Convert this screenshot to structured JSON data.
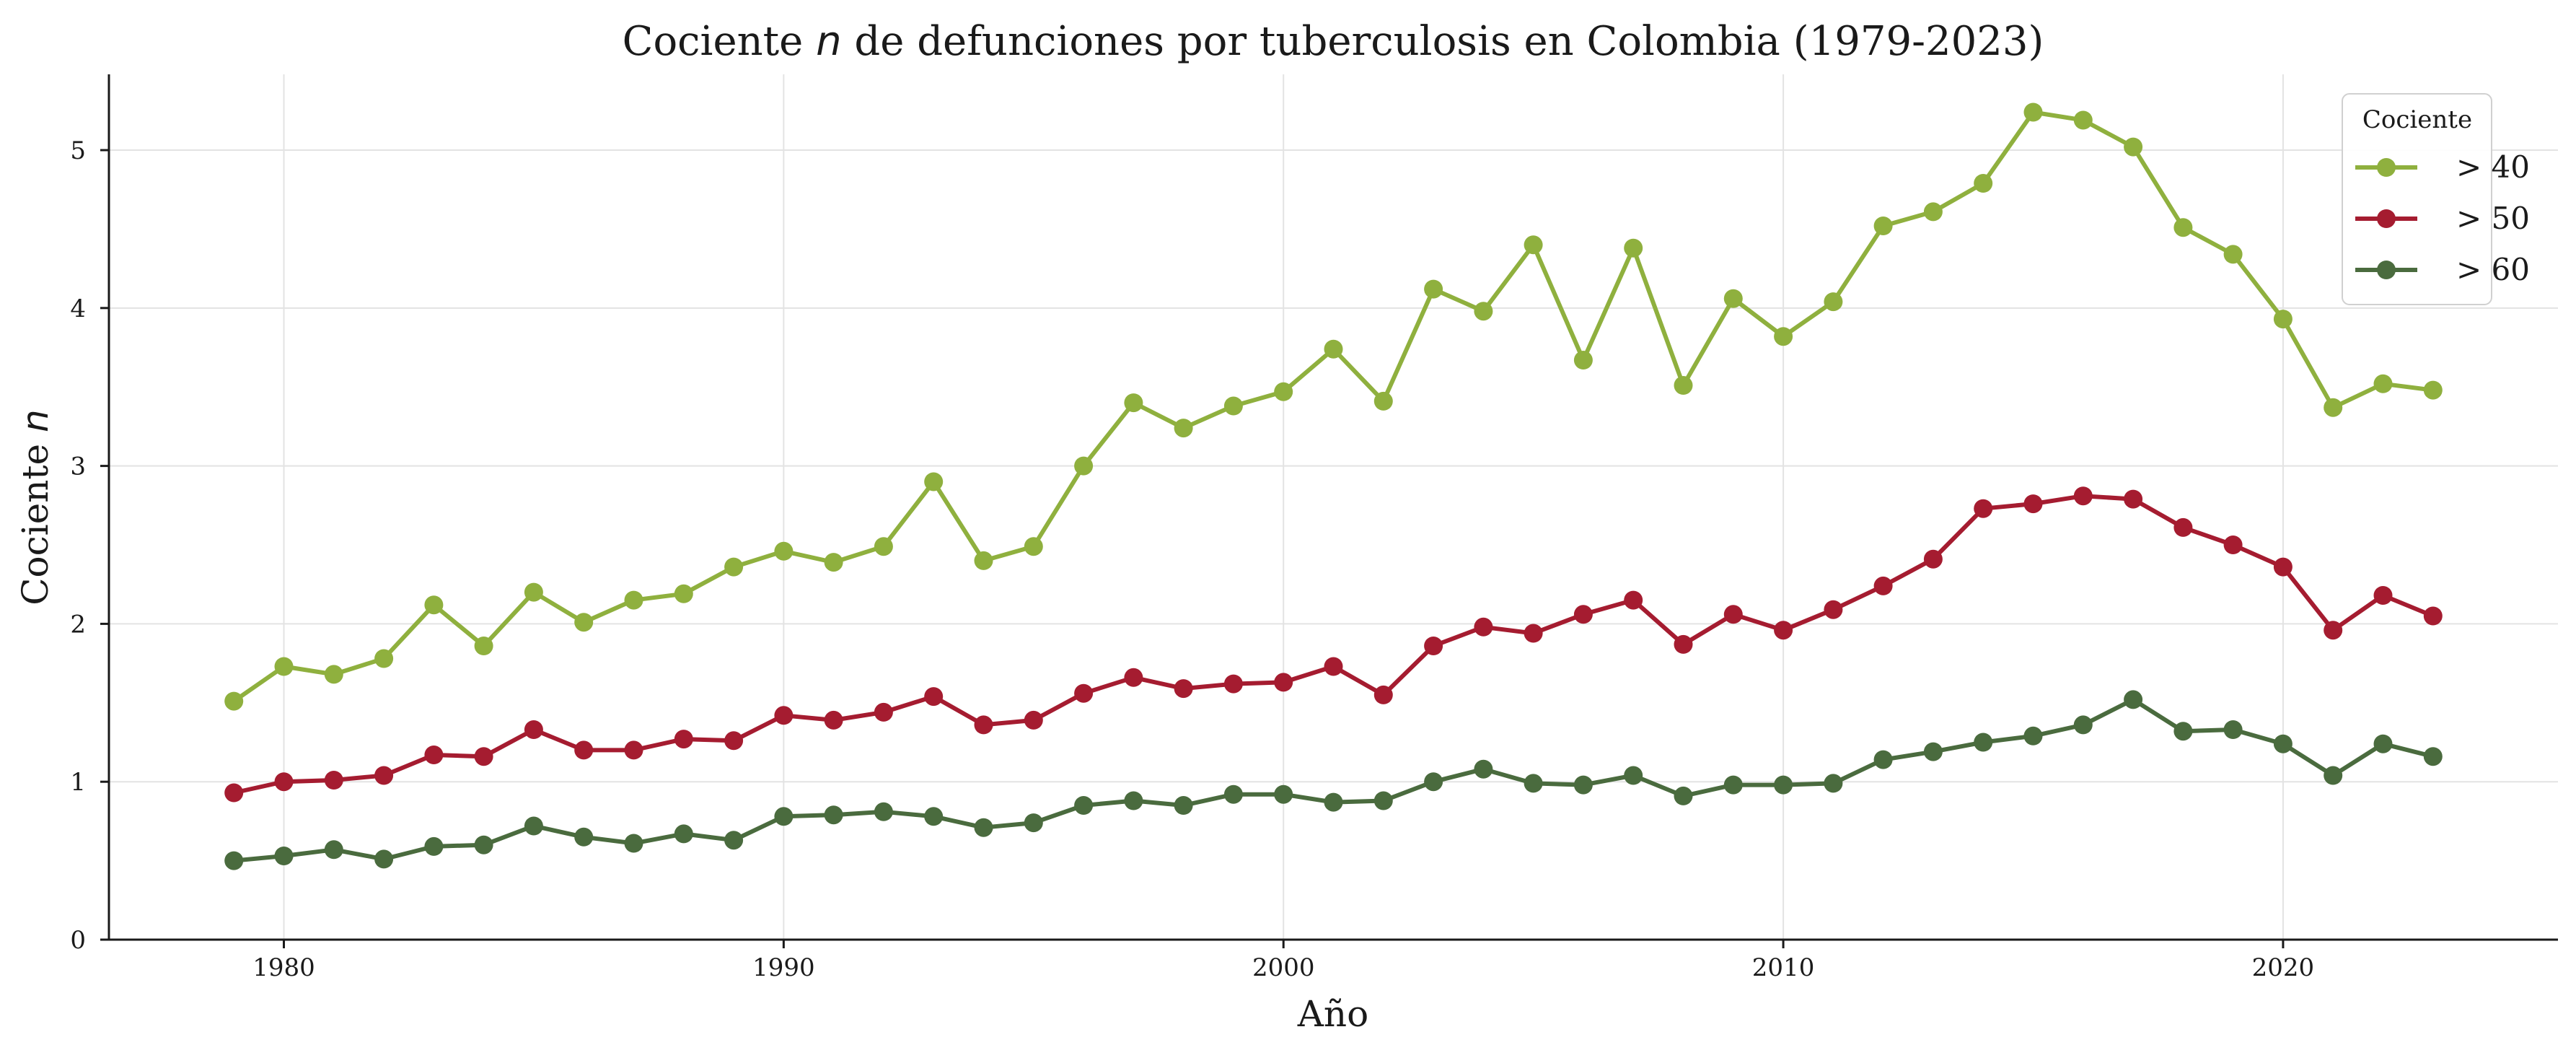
{
  "chart_data": {
    "type": "line",
    "title_pre": "Cociente ",
    "title_var": "n",
    "title_post": " de defunciones por tuberculosis en Colombia (1979-2023)",
    "xlabel": "Año",
    "ylabel_pre": "Cociente ",
    "ylabel_var": "n",
    "xlim": [
      1976.5,
      2025.5
    ],
    "ylim": [
      0,
      5.48
    ],
    "xticks": [
      1980,
      1990,
      2000,
      2010,
      2020
    ],
    "yticks": [
      0,
      1,
      2,
      3,
      4,
      5
    ],
    "grid": true,
    "legend": {
      "title": "Cociente",
      "placement": "top-right"
    },
    "x": [
      1979,
      1980,
      1981,
      1982,
      1983,
      1984,
      1985,
      1986,
      1987,
      1988,
      1989,
      1990,
      1991,
      1992,
      1993,
      1994,
      1995,
      1996,
      1997,
      1998,
      1999,
      2000,
      2001,
      2002,
      2003,
      2004,
      2005,
      2006,
      2007,
      2008,
      2009,
      2010,
      2011,
      2012,
      2013,
      2014,
      2015,
      2016,
      2017,
      2018,
      2019,
      2020,
      2021,
      2022,
      2023
    ],
    "series": [
      {
        "name": "> 40",
        "color": "#8fb03e",
        "values": [
          1.51,
          1.73,
          1.68,
          1.78,
          2.12,
          1.86,
          2.2,
          2.01,
          2.15,
          2.19,
          2.36,
          2.46,
          2.39,
          2.49,
          2.9,
          2.4,
          2.49,
          3.0,
          3.4,
          3.24,
          3.38,
          3.47,
          3.74,
          3.41,
          4.12,
          3.98,
          4.4,
          3.67,
          4.38,
          3.51,
          4.06,
          3.82,
          4.04,
          4.52,
          4.61,
          4.79,
          5.24,
          5.19,
          5.02,
          4.51,
          4.34,
          3.93,
          3.37,
          3.52,
          3.48
        ]
      },
      {
        "name": "> 50",
        "color": "#a51c30",
        "values": [
          0.93,
          1.0,
          1.01,
          1.04,
          1.17,
          1.16,
          1.33,
          1.2,
          1.2,
          1.27,
          1.26,
          1.42,
          1.39,
          1.44,
          1.54,
          1.36,
          1.39,
          1.56,
          1.66,
          1.59,
          1.62,
          1.63,
          1.73,
          1.55,
          1.86,
          1.98,
          1.94,
          2.06,
          2.15,
          1.87,
          2.06,
          1.96,
          2.09,
          2.24,
          2.41,
          2.73,
          2.76,
          2.81,
          2.79,
          2.61,
          2.5,
          2.36,
          1.96,
          2.18,
          2.05
        ]
      },
      {
        "name": "> 60",
        "color": "#4a6b3e",
        "values": [
          0.5,
          0.53,
          0.57,
          0.51,
          0.59,
          0.6,
          0.72,
          0.65,
          0.61,
          0.67,
          0.63,
          0.78,
          0.79,
          0.81,
          0.78,
          0.71,
          0.74,
          0.85,
          0.88,
          0.85,
          0.92,
          0.92,
          0.87,
          0.88,
          1.0,
          1.08,
          0.99,
          0.98,
          1.04,
          0.91,
          0.98,
          0.98,
          0.99,
          1.14,
          1.19,
          1.25,
          1.29,
          1.36,
          1.52,
          1.32,
          1.33,
          1.24,
          1.04,
          1.24,
          1.16
        ]
      }
    ]
  }
}
